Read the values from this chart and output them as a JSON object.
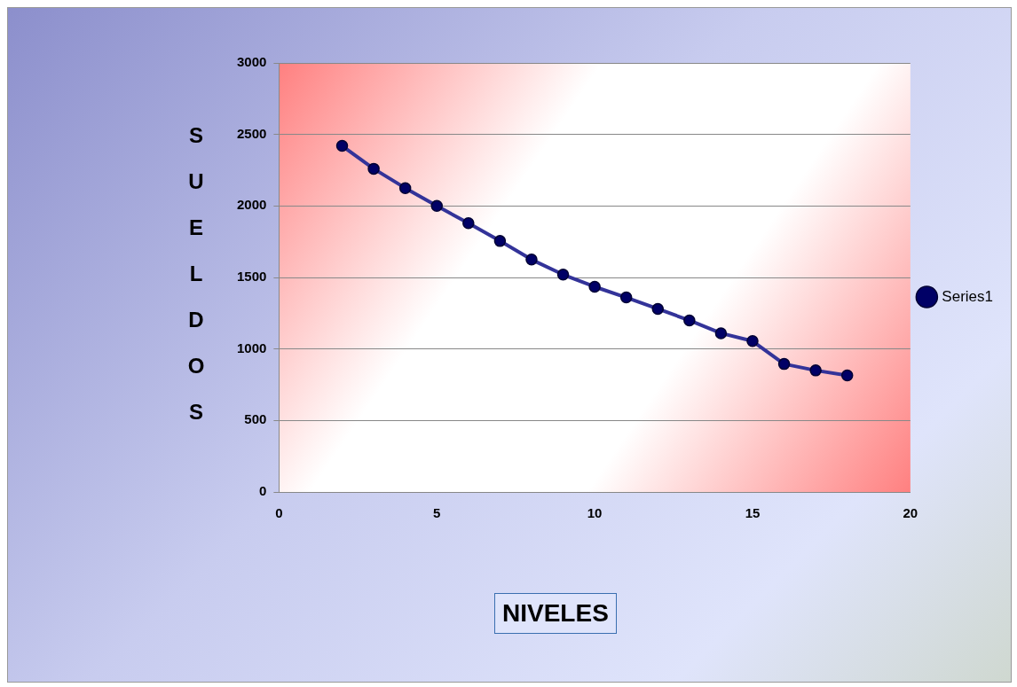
{
  "chart_data": {
    "type": "line",
    "xlabel": "NIVELES",
    "ylabel": "SUELDOS",
    "x": [
      2,
      3,
      4,
      5,
      6,
      7,
      8,
      9,
      10,
      11,
      12,
      13,
      14,
      15,
      16,
      17,
      18
    ],
    "series": [
      {
        "name": "Series1",
        "color": "#333399",
        "values": [
          2420,
          2260,
          2125,
          2000,
          1880,
          1755,
          1625,
          1520,
          1435,
          1360,
          1280,
          1200,
          1110,
          1055,
          895,
          850,
          815
        ]
      }
    ],
    "xlim": [
      0,
      20
    ],
    "xticks": [
      0,
      5,
      10,
      15,
      20
    ],
    "ylim": [
      0,
      3000
    ],
    "yticks": [
      0,
      500,
      1000,
      1500,
      2000,
      2500,
      3000
    ],
    "grid": "y",
    "legend": "right",
    "marker": "circle",
    "line_style": "solid"
  }
}
